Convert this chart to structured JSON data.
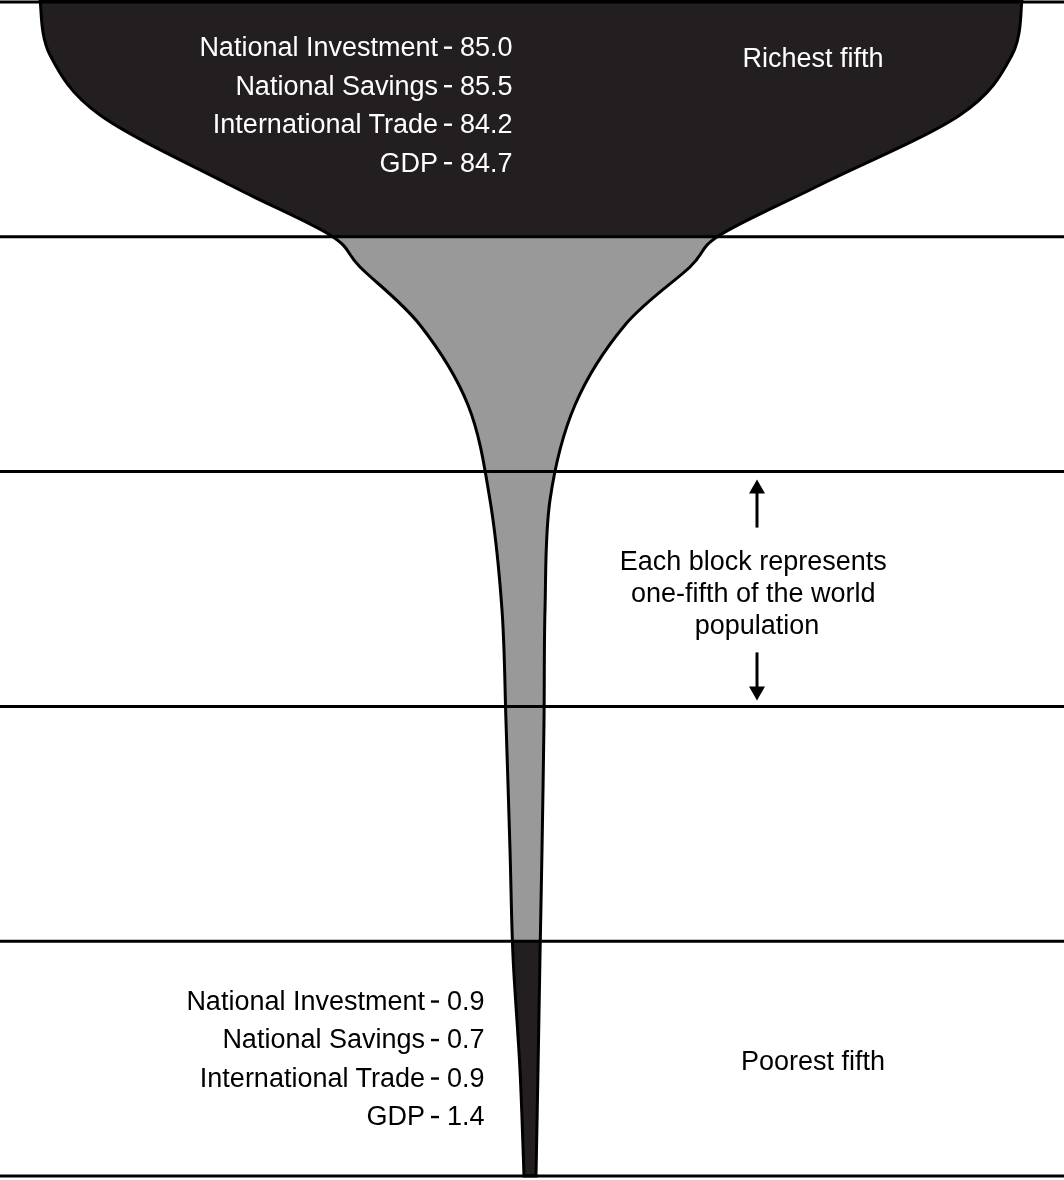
{
  "chart_data": {
    "type": "other",
    "categories": [
      "Richest fifth",
      null,
      null,
      null,
      "Poorest fifth"
    ],
    "data_labels": true,
    "series": [
      {
        "name": "National Investment",
        "values": [
          85.0,
          null,
          null,
          null,
          0.9
        ],
        "value_labels": [
          "85.0",
          null,
          null,
          null,
          "0.9"
        ]
      },
      {
        "name": "National Savings",
        "values": [
          85.5,
          null,
          null,
          null,
          0.7
        ]
      },
      {
        "name": "International Trade",
        "values": [
          84.2,
          null,
          null,
          null,
          0.9
        ]
      },
      {
        "name": "GDP",
        "values": [
          84.7,
          null,
          null,
          null,
          1.4
        ]
      }
    ],
    "annotations": [
      "Each block represents one-fifth of the world population"
    ]
  }
}
